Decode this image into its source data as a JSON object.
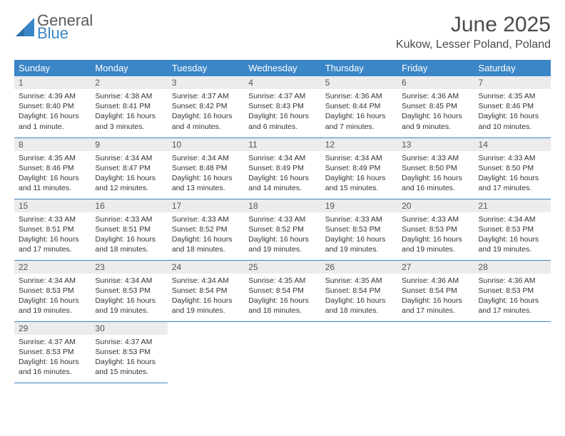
{
  "brand": {
    "word1": "General",
    "word2": "Blue",
    "logo_color": "#3b86c7",
    "text_gray": "#5a5a5a"
  },
  "header": {
    "title": "June 2025",
    "location": "Kukow, Lesser Poland, Poland"
  },
  "theme": {
    "header_bg": "#3b86c7",
    "header_fg": "#ffffff",
    "daynum_bg": "#ececec",
    "cell_border": "#3b86c7",
    "body_bg": "#ffffff",
    "text_color": "#333333"
  },
  "calendar": {
    "type": "table",
    "columns": [
      "Sunday",
      "Monday",
      "Tuesday",
      "Wednesday",
      "Thursday",
      "Friday",
      "Saturday"
    ],
    "start_weekday": 0,
    "days": [
      {
        "n": 1,
        "sunrise": "4:39 AM",
        "sunset": "8:40 PM",
        "daylight": "16 hours and 1 minute."
      },
      {
        "n": 2,
        "sunrise": "4:38 AM",
        "sunset": "8:41 PM",
        "daylight": "16 hours and 3 minutes."
      },
      {
        "n": 3,
        "sunrise": "4:37 AM",
        "sunset": "8:42 PM",
        "daylight": "16 hours and 4 minutes."
      },
      {
        "n": 4,
        "sunrise": "4:37 AM",
        "sunset": "8:43 PM",
        "daylight": "16 hours and 6 minutes."
      },
      {
        "n": 5,
        "sunrise": "4:36 AM",
        "sunset": "8:44 PM",
        "daylight": "16 hours and 7 minutes."
      },
      {
        "n": 6,
        "sunrise": "4:36 AM",
        "sunset": "8:45 PM",
        "daylight": "16 hours and 9 minutes."
      },
      {
        "n": 7,
        "sunrise": "4:35 AM",
        "sunset": "8:46 PM",
        "daylight": "16 hours and 10 minutes."
      },
      {
        "n": 8,
        "sunrise": "4:35 AM",
        "sunset": "8:46 PM",
        "daylight": "16 hours and 11 minutes."
      },
      {
        "n": 9,
        "sunrise": "4:34 AM",
        "sunset": "8:47 PM",
        "daylight": "16 hours and 12 minutes."
      },
      {
        "n": 10,
        "sunrise": "4:34 AM",
        "sunset": "8:48 PM",
        "daylight": "16 hours and 13 minutes."
      },
      {
        "n": 11,
        "sunrise": "4:34 AM",
        "sunset": "8:49 PM",
        "daylight": "16 hours and 14 minutes."
      },
      {
        "n": 12,
        "sunrise": "4:34 AM",
        "sunset": "8:49 PM",
        "daylight": "16 hours and 15 minutes."
      },
      {
        "n": 13,
        "sunrise": "4:33 AM",
        "sunset": "8:50 PM",
        "daylight": "16 hours and 16 minutes."
      },
      {
        "n": 14,
        "sunrise": "4:33 AM",
        "sunset": "8:50 PM",
        "daylight": "16 hours and 17 minutes."
      },
      {
        "n": 15,
        "sunrise": "4:33 AM",
        "sunset": "8:51 PM",
        "daylight": "16 hours and 17 minutes."
      },
      {
        "n": 16,
        "sunrise": "4:33 AM",
        "sunset": "8:51 PM",
        "daylight": "16 hours and 18 minutes."
      },
      {
        "n": 17,
        "sunrise": "4:33 AM",
        "sunset": "8:52 PM",
        "daylight": "16 hours and 18 minutes."
      },
      {
        "n": 18,
        "sunrise": "4:33 AM",
        "sunset": "8:52 PM",
        "daylight": "16 hours and 19 minutes."
      },
      {
        "n": 19,
        "sunrise": "4:33 AM",
        "sunset": "8:53 PM",
        "daylight": "16 hours and 19 minutes."
      },
      {
        "n": 20,
        "sunrise": "4:33 AM",
        "sunset": "8:53 PM",
        "daylight": "16 hours and 19 minutes."
      },
      {
        "n": 21,
        "sunrise": "4:34 AM",
        "sunset": "8:53 PM",
        "daylight": "16 hours and 19 minutes."
      },
      {
        "n": 22,
        "sunrise": "4:34 AM",
        "sunset": "8:53 PM",
        "daylight": "16 hours and 19 minutes."
      },
      {
        "n": 23,
        "sunrise": "4:34 AM",
        "sunset": "8:53 PM",
        "daylight": "16 hours and 19 minutes."
      },
      {
        "n": 24,
        "sunrise": "4:34 AM",
        "sunset": "8:54 PM",
        "daylight": "16 hours and 19 minutes."
      },
      {
        "n": 25,
        "sunrise": "4:35 AM",
        "sunset": "8:54 PM",
        "daylight": "16 hours and 18 minutes."
      },
      {
        "n": 26,
        "sunrise": "4:35 AM",
        "sunset": "8:54 PM",
        "daylight": "16 hours and 18 minutes."
      },
      {
        "n": 27,
        "sunrise": "4:36 AM",
        "sunset": "8:54 PM",
        "daylight": "16 hours and 17 minutes."
      },
      {
        "n": 28,
        "sunrise": "4:36 AM",
        "sunset": "8:53 PM",
        "daylight": "16 hours and 17 minutes."
      },
      {
        "n": 29,
        "sunrise": "4:37 AM",
        "sunset": "8:53 PM",
        "daylight": "16 hours and 16 minutes."
      },
      {
        "n": 30,
        "sunrise": "4:37 AM",
        "sunset": "8:53 PM",
        "daylight": "16 hours and 15 minutes."
      }
    ],
    "labels": {
      "sunrise": "Sunrise: ",
      "sunset": "Sunset: ",
      "daylight": "Daylight: "
    }
  }
}
